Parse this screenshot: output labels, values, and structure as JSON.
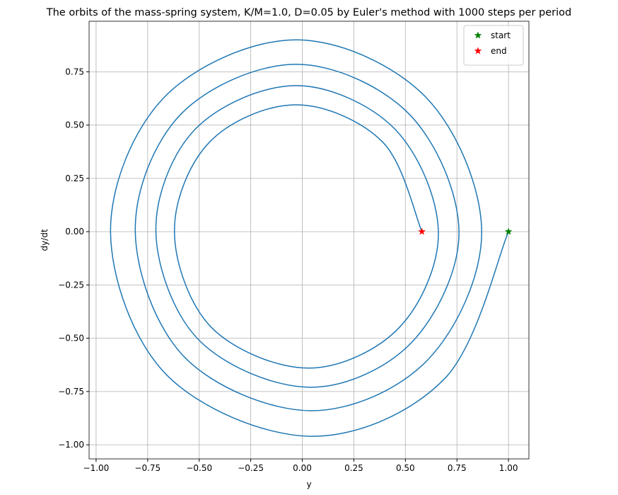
{
  "chart_data": {
    "type": "line",
    "title": "The orbits of the mass-spring system, K/M=1.0, D=0.05 by Euler's method with 1000 steps per period",
    "xlabel": "y",
    "ylabel": "dy/dt",
    "xlim": [
      -1.034,
      1.099
    ],
    "ylim": [
      -1.066,
      0.987
    ],
    "xticks": [
      {
        "value": -1,
        "label": "−1.00"
      },
      {
        "value": -0.75,
        "label": "−0.75"
      },
      {
        "value": -0.5,
        "label": "−0.50"
      },
      {
        "value": -0.25,
        "label": "−0.25"
      },
      {
        "value": 0,
        "label": "0.00"
      },
      {
        "value": 0.25,
        "label": "0.25"
      },
      {
        "value": 0.5,
        "label": "0.50"
      },
      {
        "value": 0.75,
        "label": "0.75"
      },
      {
        "value": 1,
        "label": "1.00"
      }
    ],
    "yticks": [
      {
        "value": -1,
        "label": "−1.00"
      },
      {
        "value": -0.75,
        "label": "−0.75"
      },
      {
        "value": -0.5,
        "label": "−0.50"
      },
      {
        "value": -0.25,
        "label": "−0.25"
      },
      {
        "value": 0,
        "label": "0.00"
      },
      {
        "value": 0.25,
        "label": "0.25"
      },
      {
        "value": 0.5,
        "label": "0.50"
      },
      {
        "value": 0.75,
        "label": "0.75"
      }
    ],
    "grid": true,
    "legend": "upper right",
    "series": [
      {
        "color": "#1f77b4",
        "x": [
          1,
          0.69,
          0.04,
          -0.66,
          -0.93,
          -0.67,
          -0.03,
          0.6,
          0.87,
          0.61,
          0.04,
          -0.57,
          -0.81,
          -0.59,
          -0.03,
          0.52,
          0.76,
          0.53,
          0.035,
          -0.5,
          -0.71,
          -0.52,
          -0.03,
          0.45,
          0.66,
          0.47,
          0.03,
          -0.44,
          -0.62,
          -0.45,
          -0.03,
          0.39,
          0.58
        ],
        "values": [
          0,
          -0.69,
          -0.96,
          -0.67,
          0,
          0.63,
          0.9,
          0.63,
          0,
          -0.6,
          -0.84,
          -0.59,
          0,
          0.55,
          0.785,
          0.55,
          0,
          -0.52,
          -0.73,
          -0.51,
          0,
          0.48,
          0.685,
          0.48,
          0,
          -0.45,
          -0.64,
          -0.45,
          0,
          0.42,
          0.595,
          0.42,
          0
        ]
      },
      {
        "name": "start",
        "color": "green",
        "marker": "star",
        "x": [
          1
        ],
        "values": [
          0
        ]
      },
      {
        "name": "end",
        "color": "red",
        "marker": "star",
        "x": [
          0.58
        ],
        "values": [
          0
        ]
      }
    ]
  }
}
